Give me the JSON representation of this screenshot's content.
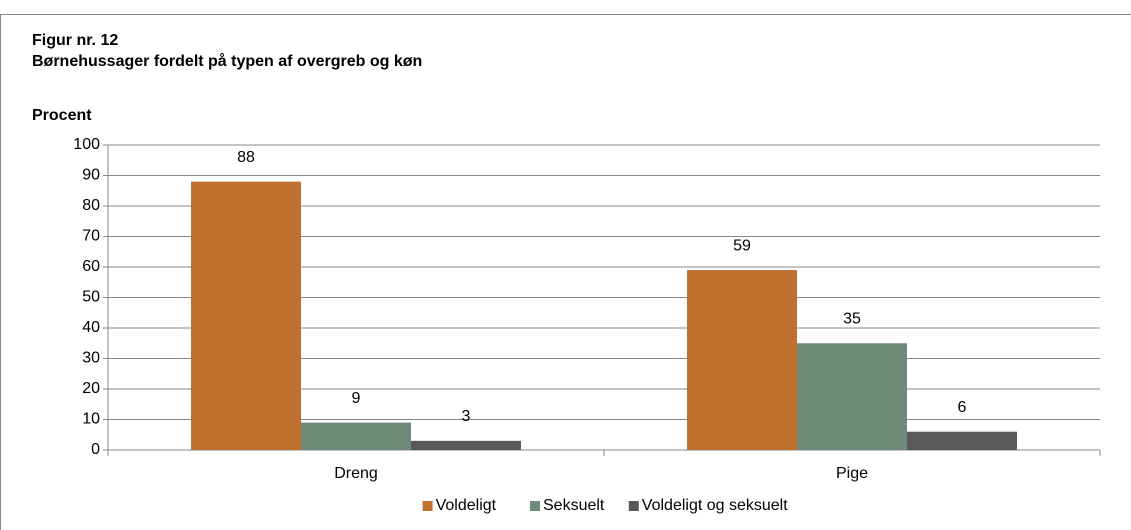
{
  "chart_data": {
    "type": "bar",
    "title": "Figur nr. 12",
    "subtitle": "Børnehussager fordelt på typen af overgreb og køn",
    "y_label": "Procent",
    "categories": [
      "Dreng",
      "Pige"
    ],
    "series": [
      {
        "name": "Voldeligt",
        "color": "#c0702f",
        "values": [
          88,
          59
        ]
      },
      {
        "name": "Seksuelt",
        "color": "#6d8b78",
        "values": [
          9,
          35
        ]
      },
      {
        "name": "Voldeligt og seksuelt",
        "color": "#595959",
        "values": [
          3,
          6
        ]
      }
    ],
    "ylim": [
      0,
      100
    ],
    "yticks": [
      0,
      10,
      20,
      30,
      40,
      50,
      60,
      70,
      80,
      90,
      100
    ],
    "grid": true,
    "legend": "bottom"
  }
}
